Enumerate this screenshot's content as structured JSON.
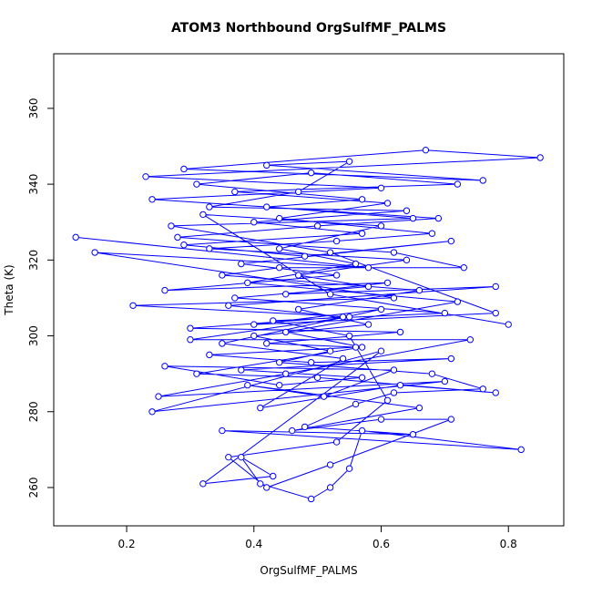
{
  "chart_data": {
    "type": "line",
    "title": "ATOM3 Northbound OrgSulfMF_PALMS",
    "x_label": "OrgSulfMF_PALMS",
    "y_label": "Theta (K)",
    "color": "#0000ff",
    "markers": true,
    "xlim": [
      0.0854,
      0.887
    ],
    "ylim": [
      249.9,
      374.4
    ],
    "xticks": [
      0.2,
      0.4,
      0.6,
      0.8
    ],
    "yticks": [
      260,
      280,
      300,
      320,
      340,
      360
    ],
    "x": [
      0.12,
      0.58,
      0.15,
      0.62,
      0.21,
      0.55,
      0.3,
      0.74,
      0.45,
      0.25,
      0.7,
      0.24,
      0.6,
      0.32,
      0.43,
      0.38,
      0.41,
      0.49,
      0.52,
      0.55,
      0.57,
      0.82,
      0.35,
      0.65,
      0.48,
      0.56,
      0.62,
      0.76,
      0.68,
      0.44,
      0.52,
      0.4,
      0.58,
      0.47,
      0.66,
      0.35,
      0.44,
      0.73,
      0.62,
      0.28,
      0.5,
      0.69,
      0.24,
      0.6,
      0.23,
      0.85,
      0.67,
      0.29,
      0.76,
      0.42,
      0.55,
      0.47,
      0.33,
      0.64,
      0.4,
      0.57,
      0.29,
      0.48,
      0.71,
      0.38,
      0.53,
      0.26,
      0.61,
      0.45,
      0.78,
      0.36,
      0.54,
      0.3,
      0.63,
      0.42,
      0.56,
      0.33,
      0.49,
      0.71,
      0.38,
      0.57,
      0.44,
      0.26,
      0.62,
      0.51,
      0.39,
      0.66,
      0.46,
      0.6,
      0.71,
      0.52,
      0.42,
      0.36,
      0.53,
      0.61,
      0.55,
      0.43,
      0.7,
      0.37,
      0.58,
      0.47,
      0.64,
      0.33,
      0.53,
      0.68,
      0.44,
      0.61,
      0.37,
      0.72,
      0.49,
      0.31,
      0.57,
      0.42,
      0.65,
      0.27,
      0.52,
      0.78,
      0.4,
      0.6,
      0.35,
      0.54,
      0.41,
      0.63,
      0.78,
      0.5,
      0.31,
      0.57,
      0.45,
      0.72,
      0.39,
      0.56,
      0.44,
      0.6,
      0.32,
      0.52,
      0.8
    ],
    "values": [
      326,
      318,
      322,
      310,
      308,
      305,
      299,
      299,
      290,
      284,
      288,
      280,
      296,
      261,
      263,
      268,
      261,
      257,
      260,
      265,
      275,
      270,
      275,
      274,
      276,
      282,
      285,
      286,
      290,
      293,
      296,
      300,
      303,
      307,
      312,
      316,
      318,
      318,
      322,
      326,
      329,
      331,
      336,
      339,
      342,
      347,
      349,
      344,
      341,
      345,
      346,
      338,
      334,
      333,
      330,
      327,
      324,
      321,
      325,
      319,
      316,
      312,
      314,
      311,
      313,
      308,
      305,
      302,
      301,
      298,
      297,
      295,
      293,
      294,
      291,
      289,
      287,
      292,
      291,
      284,
      287,
      281,
      275,
      278,
      278,
      266,
      260,
      268,
      272,
      283,
      300,
      304,
      306,
      310,
      313,
      316,
      320,
      323,
      325,
      327,
      331,
      335,
      338,
      340,
      343,
      340,
      336,
      334,
      331,
      329,
      322,
      306,
      303,
      307,
      298,
      294,
      281,
      287,
      285,
      289,
      290,
      297,
      301,
      309,
      314,
      319,
      323,
      329,
      332,
      311,
      303
    ]
  }
}
